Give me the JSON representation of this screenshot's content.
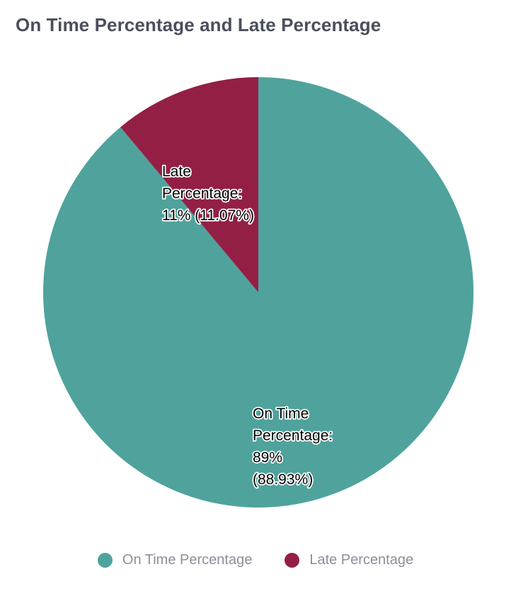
{
  "chart_data": {
    "type": "pie",
    "title": "On Time Percentage and Late Percentage",
    "slices": [
      {
        "name": "On Time Percentage",
        "value": 88.93,
        "label_lines": [
          "On Time",
          "Percentage:",
          "89%",
          "(88.93%)"
        ],
        "color": "#4fa39c"
      },
      {
        "name": "Late Percentage",
        "value": 11.07,
        "label_lines": [
          "Late",
          "Percentage:",
          "11% (11.07%)"
        ],
        "color": "#941f45"
      }
    ],
    "legend_position": "bottom"
  }
}
